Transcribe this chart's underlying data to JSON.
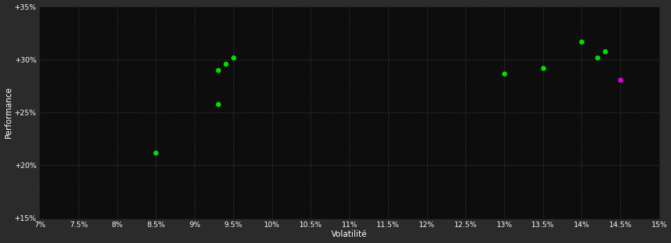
{
  "background_color": "#2b2b2b",
  "plot_bg_color": "#0d0d0d",
  "grid_color": "#3a3a3a",
  "text_color": "#ffffff",
  "xlabel": "Volatilité",
  "ylabel": "Performance",
  "xlim": [
    0.07,
    0.15
  ],
  "ylim": [
    0.15,
    0.35
  ],
  "xticks": [
    0.07,
    0.075,
    0.08,
    0.085,
    0.09,
    0.095,
    0.1,
    0.105,
    0.11,
    0.115,
    0.12,
    0.125,
    0.13,
    0.135,
    0.14,
    0.145,
    0.15
  ],
  "yticks": [
    0.15,
    0.2,
    0.25,
    0.3,
    0.35
  ],
  "xtick_labels": [
    "7%",
    "7.5%",
    "8%",
    "8.5%",
    "9%",
    "9.5%",
    "10%",
    "10.5%",
    "11%",
    "11.5%",
    "12%",
    "12.5%",
    "13%",
    "13.5%",
    "14%",
    "14.5%",
    "15%"
  ],
  "ytick_labels": [
    "+15%",
    "+20%",
    "+25%",
    "+30%",
    "+35%"
  ],
  "green_points": [
    [
      0.085,
      0.212
    ],
    [
      0.093,
      0.29
    ],
    [
      0.094,
      0.296
    ],
    [
      0.095,
      0.302
    ],
    [
      0.093,
      0.258
    ],
    [
      0.13,
      0.287
    ],
    [
      0.135,
      0.292
    ],
    [
      0.14,
      0.317
    ],
    [
      0.142,
      0.302
    ],
    [
      0.143,
      0.308
    ]
  ],
  "magenta_points": [
    [
      0.145,
      0.281
    ]
  ],
  "green_color": "#00dd00",
  "magenta_color": "#dd00dd",
  "marker_size": 28
}
